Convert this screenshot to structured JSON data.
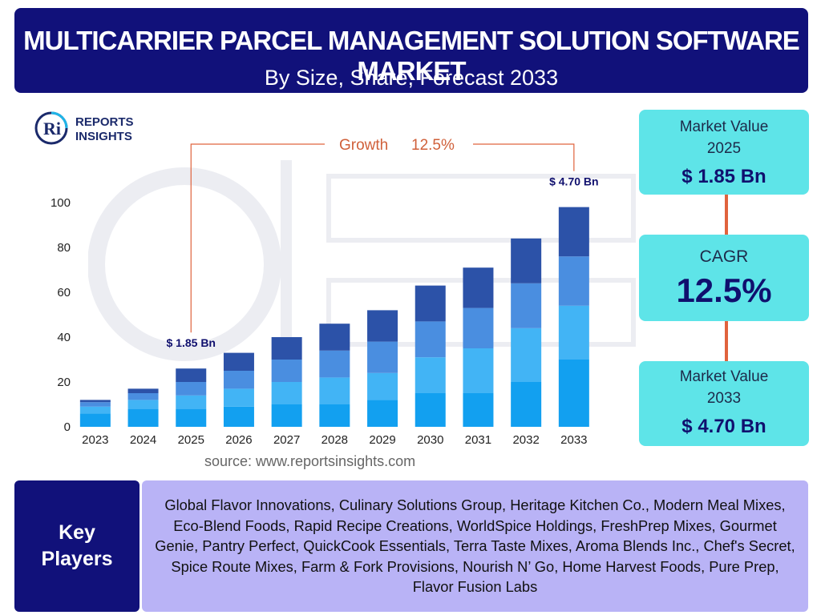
{
  "header": {
    "title": "MULTICARRIER PARCEL MANAGEMENT SOLUTION SOFTWARE MARKET",
    "subtitle": "By Size, Share, Forecast 2033"
  },
  "logo": {
    "line1": "REPORTS",
    "line2": "INSIGHTS",
    "mark": "Ri"
  },
  "growth_label": "Growth",
  "growth_value": "12.5%",
  "source": "source: www.reportsinsights.com",
  "cards": [
    {
      "label": "Market Value",
      "sub": "2025",
      "value": "$ 1.85 Bn"
    },
    {
      "label": "CAGR",
      "value": "12.5%"
    },
    {
      "label": "Market Value",
      "sub": "2033",
      "value": "$ 4.70 Bn"
    }
  ],
  "key_players": {
    "title_line1": "Key",
    "title_line2": "Players",
    "list": "Global Flavor Innovations, Culinary Solutions Group, Heritage Kitchen Co., Modern Meal Mixes, Eco-Blend Foods, Rapid Recipe Creations, WorldSpice Holdings, FreshPrep Mixes, Gourmet Genie, Pantry Perfect, QuickCook Essentials, Terra Taste Mixes, Aroma Blends Inc., Chef's Secret, Spice Route Mixes, Farm & Fork Provisions, Nourish N’ Go, Home Harvest Foods, Pure Prep, Flavor Fusion Labs"
  },
  "colors": {
    "navy": "#11117a",
    "cyan_card": "#5ee4e8",
    "lavender": "#b9b3f6",
    "accent_orange": "#e0633d",
    "seg1": "#12a0f0",
    "seg2": "#42b4f5",
    "seg3": "#4a8ee0",
    "seg4": "#2c52a8"
  },
  "chart_data": {
    "type": "bar",
    "stacked": true,
    "categories": [
      "2023",
      "2024",
      "2025",
      "2026",
      "2027",
      "2028",
      "2029",
      "2030",
      "2031",
      "2032",
      "2033"
    ],
    "series": [
      {
        "values": [
          6,
          8,
          8,
          9,
          10,
          10,
          12,
          15,
          15,
          20,
          30
        ]
      },
      {
        "values": [
          3,
          4,
          6,
          8,
          10,
          12,
          12,
          16,
          20,
          24,
          24
        ]
      },
      {
        "values": [
          2,
          3,
          6,
          8,
          10,
          12,
          14,
          16,
          18,
          20,
          22
        ]
      },
      {
        "values": [
          1,
          2,
          6,
          8,
          10,
          12,
          14,
          16,
          18,
          20,
          22
        ]
      }
    ],
    "yticks": [
      0,
      20,
      40,
      60,
      80,
      100
    ],
    "ylim": [
      0,
      100
    ],
    "annotations": [
      {
        "category": "2025",
        "text": "$ 1.85 Bn"
      },
      {
        "category": "2033",
        "text": "$ 4.70 Bn"
      }
    ],
    "grid": false
  }
}
